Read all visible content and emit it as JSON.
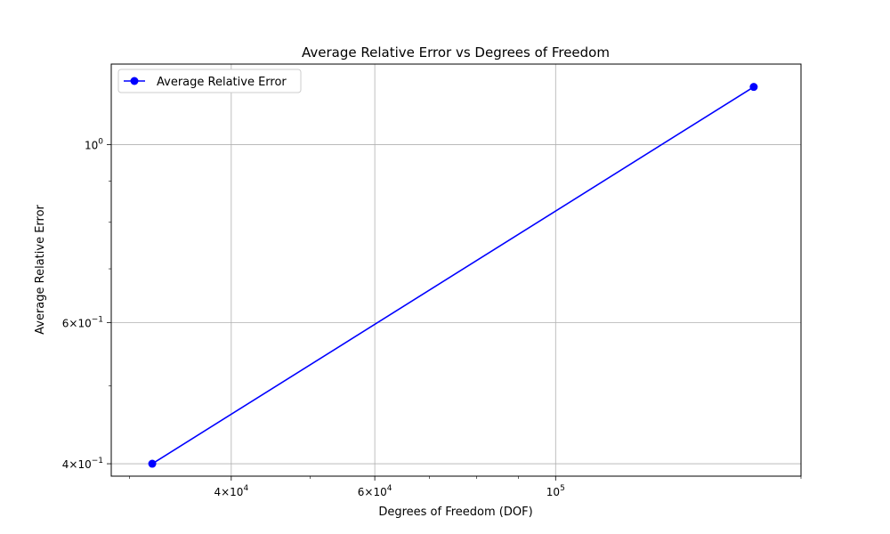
{
  "chart_data": {
    "type": "line",
    "title": "Average Relative Error vs Degrees of Freedom",
    "xlabel": "Degrees of Freedom (DOF)",
    "ylabel": "Average Relative Error",
    "xscale": "log",
    "yscale": "log",
    "xlim": [
      28500,
      200000
    ],
    "ylim": [
      0.386,
      1.26
    ],
    "grid": true,
    "legend_position": "top-left",
    "x_major_ticks": [
      {
        "value": 40000,
        "label_base": "4×10",
        "label_exp": "4"
      },
      {
        "value": 60000,
        "label_base": "6×10",
        "label_exp": "4"
      },
      {
        "value": 100000,
        "label_base": "10",
        "label_exp": "5"
      }
    ],
    "x_minor_ticks": [
      30000,
      50000,
      70000,
      80000,
      90000,
      200000
    ],
    "y_major_ticks": [
      {
        "value": 0.4,
        "label_base": "4×10",
        "label_exp": "−1"
      },
      {
        "value": 0.6,
        "label_base": "6×10",
        "label_exp": "−1"
      },
      {
        "value": 1.0,
        "label_base": "10",
        "label_exp": "0"
      }
    ],
    "y_minor_ticks": [
      0.5,
      0.7,
      0.8,
      0.9
    ],
    "series": [
      {
        "name": "Average Relative Error",
        "color": "#0000ff",
        "marker": "circle",
        "x": [
          32000,
          175000
        ],
        "y": [
          0.4,
          1.18
        ]
      }
    ]
  }
}
